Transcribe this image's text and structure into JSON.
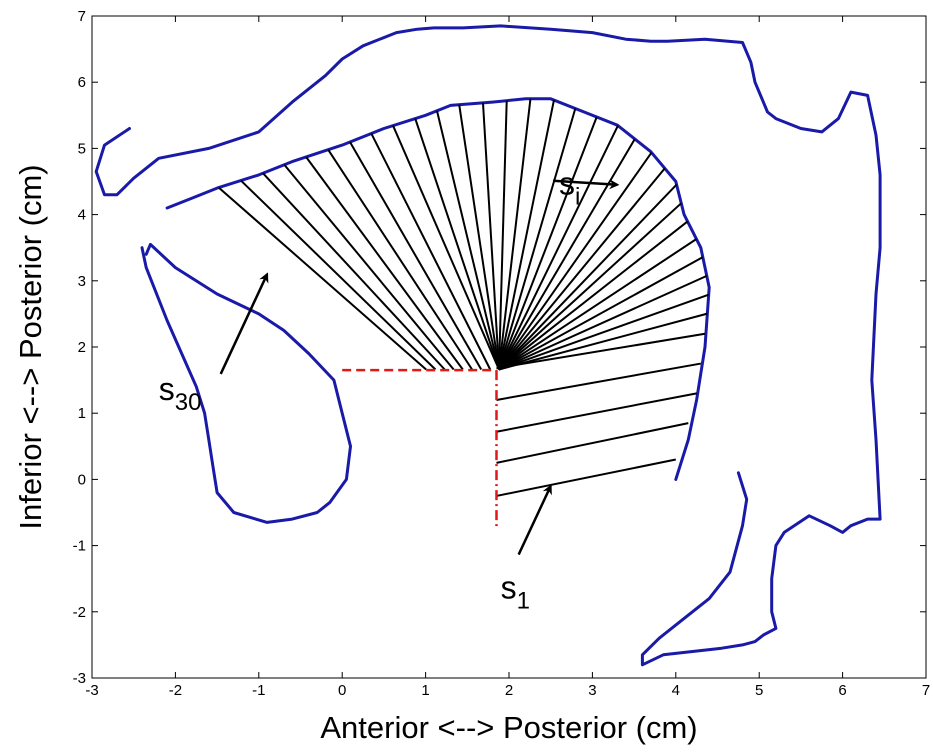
{
  "chart_data": {
    "type": "line",
    "title": "",
    "xlabel": "Anterior <--> Posterior (cm)",
    "ylabel": "Inferior <--> Posterior (cm)",
    "xlim": [
      -3,
      7
    ],
    "ylim": [
      -3,
      7
    ],
    "xticks": [
      "-3",
      "-2",
      "-1",
      "0",
      "1",
      "2",
      "3",
      "4",
      "5",
      "6",
      "7"
    ],
    "yticks": [
      "-3",
      "-2",
      "-1",
      "0",
      "1",
      "2",
      "3",
      "4",
      "5",
      "6",
      "7"
    ],
    "grid": false,
    "colors": {
      "contour": "#1a1aa8",
      "gridline": "#000000",
      "reference": "#e01818"
    },
    "contours": [
      {
        "x": [
          -2.55,
          -2.85,
          -2.95,
          -2.85,
          -2.7,
          -2.5,
          -2.2,
          -1.6,
          -1.0,
          -0.6,
          -0.2,
          0.0,
          0.25,
          0.65,
          0.9,
          1.1,
          1.45,
          1.9,
          2.5,
          3.0,
          3.4,
          3.7,
          3.9,
          4.35,
          4.8,
          4.9,
          4.95,
          5.1,
          5.2,
          5.5,
          5.75,
          5.95,
          6.1,
          6.3,
          6.4,
          6.45,
          6.45,
          6.4,
          6.35,
          6.4,
          6.45,
          6.3,
          6.1,
          6.0,
          5.85,
          5.6,
          5.3,
          5.2,
          5.15,
          5.15,
          5.2,
          5.05,
          4.95,
          4.8,
          4.55,
          4.2,
          3.85,
          3.6,
          3.6,
          3.8,
          4.1,
          4.4,
          4.65,
          4.8,
          4.85,
          4.75
        ],
        "y": [
          5.3,
          5.05,
          4.65,
          4.3,
          4.3,
          4.55,
          4.85,
          5.0,
          5.25,
          5.7,
          6.1,
          6.35,
          6.55,
          6.75,
          6.8,
          6.82,
          6.82,
          6.85,
          6.8,
          6.75,
          6.65,
          6.62,
          6.62,
          6.65,
          6.6,
          6.3,
          6.0,
          5.55,
          5.45,
          5.3,
          5.25,
          5.45,
          5.85,
          5.8,
          5.2,
          4.6,
          3.5,
          2.8,
          1.5,
          0.6,
          -0.6,
          -0.6,
          -0.7,
          -0.8,
          -0.7,
          -0.55,
          -0.8,
          -1.0,
          -1.5,
          -2.0,
          -2.25,
          -2.35,
          -2.45,
          -2.5,
          -2.55,
          -2.6,
          -2.65,
          -2.8,
          -2.65,
          -2.4,
          -2.1,
          -1.8,
          -1.4,
          -0.7,
          -0.3,
          0.1
        ]
      },
      {
        "x": [
          -2.1,
          -1.8,
          -1.5,
          -1.0,
          -0.6,
          0.0,
          0.5,
          1.0,
          1.3,
          1.8,
          2.2,
          2.5,
          2.9,
          3.3,
          3.7,
          4.0,
          4.1,
          4.3,
          4.4,
          4.35,
          4.25,
          4.15,
          4.0
        ],
        "y": [
          4.1,
          4.25,
          4.4,
          4.6,
          4.8,
          5.05,
          5.3,
          5.5,
          5.65,
          5.7,
          5.75,
          5.75,
          5.55,
          5.35,
          4.95,
          4.5,
          4.0,
          3.5,
          2.9,
          2.0,
          1.2,
          0.6,
          0.0
        ]
      },
      {
        "x": [
          -2.35,
          -2.3,
          -2.0,
          -1.5,
          -1.0,
          -0.7,
          -0.4,
          -0.1,
          0.0,
          0.1,
          0.05,
          -0.15,
          -0.3,
          -0.6,
          -0.9,
          -1.3,
          -1.5,
          -1.55,
          -1.6,
          -1.65,
          -1.75,
          -2.1,
          -2.35,
          -2.4
        ],
        "y": [
          3.4,
          3.55,
          3.2,
          2.8,
          2.5,
          2.25,
          1.9,
          1.5,
          1.0,
          0.5,
          0.0,
          -0.35,
          -0.5,
          -0.6,
          -0.65,
          -0.5,
          -0.2,
          0.2,
          0.6,
          1.0,
          1.4,
          2.4,
          3.2,
          3.5
        ]
      }
    ],
    "grid_lines": [
      {
        "type": "fan",
        "center": [
          1.88,
          1.66
        ],
        "count": 30
      },
      {
        "type": "parallel",
        "count": 5
      }
    ],
    "reference_lines": [
      {
        "x": [
          0.0,
          1.85
        ],
        "y": [
          1.65,
          1.65
        ],
        "style": "dashed"
      },
      {
        "x": [
          1.85,
          1.85
        ],
        "y": [
          1.65,
          -0.75
        ],
        "style": "dash-dot"
      }
    ],
    "annotations": [
      {
        "text": "s",
        "subscript": "i",
        "label_at": [
          2.6,
          4.3
        ],
        "arrow_to": [
          3.3,
          4.45
        ]
      },
      {
        "text": "s",
        "subscript": "30",
        "label_at": [
          -2.2,
          1.2
        ],
        "arrow_to": [
          -0.9,
          3.1
        ]
      },
      {
        "text": "s",
        "subscript": "1",
        "label_at": [
          1.9,
          -1.8
        ],
        "arrow_to": [
          2.5,
          -0.1
        ]
      }
    ]
  }
}
